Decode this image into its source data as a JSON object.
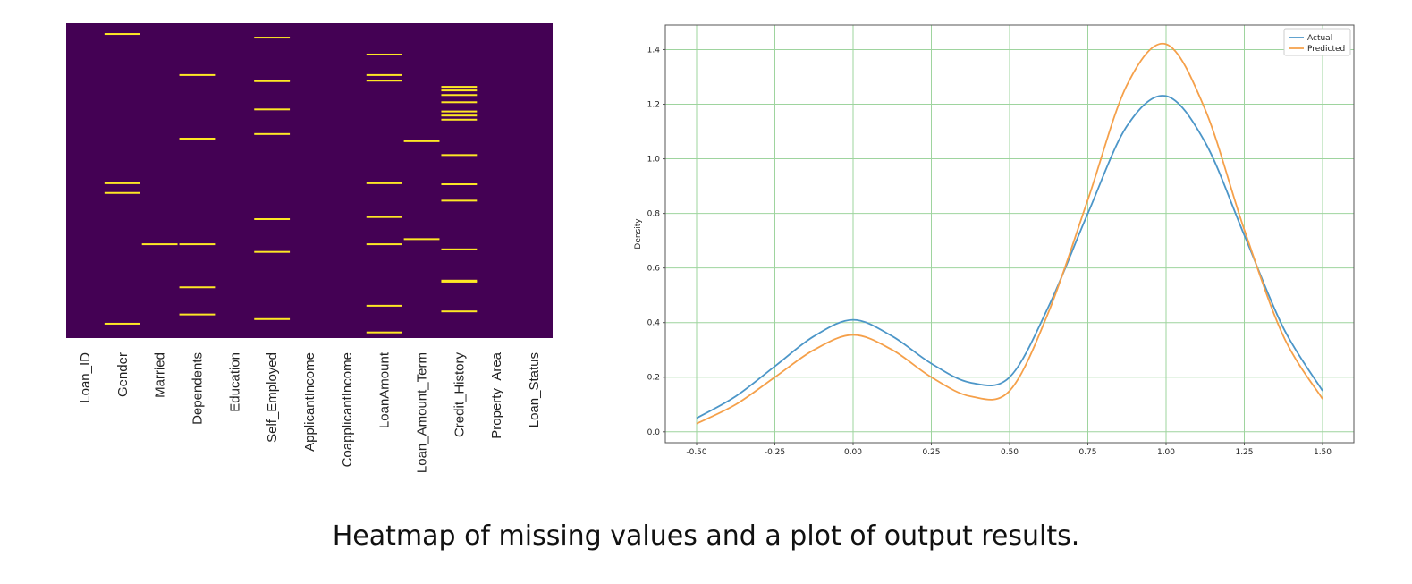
{
  "caption": "Heatmap of missing values and a plot of output results.",
  "colors": {
    "heatmap_background": "#440154",
    "heatmap_missing": "#fde725",
    "actual": "#4c96c8",
    "predicted": "#f5a04a",
    "grid": "#9ed49e",
    "axis": "#555555"
  },
  "chart_data": [
    {
      "type": "heatmap",
      "columns": [
        "Loan_ID",
        "Gender",
        "Married",
        "Dependents",
        "Education",
        "Self_Employed",
        "ApplicantIncome",
        "CoapplicantIncome",
        "LoanAmount",
        "Loan_Amount_Term",
        "Credit_History",
        "Property_Area",
        "Loan_Status"
      ],
      "row_count": 614,
      "missing_rows": {
        "Loan_ID": [],
        "Gender": [
          21,
          312,
          331,
          586
        ],
        "Married": [
          431
        ],
        "Dependents": [
          101,
          225,
          431,
          515,
          568
        ],
        "Education": [],
        "Self_Employed": [
          28,
          112,
          113,
          168,
          216,
          382,
          446,
          577
        ],
        "ApplicantIncome": [],
        "CoapplicantIncome": [],
        "LoanAmount": [
          61,
          101,
          112,
          312,
          378,
          431,
          551,
          603
        ],
        "Loan_Amount_Term": [
          230,
          421
        ],
        "Credit_History": [
          124,
          131,
          140,
          154,
          172,
          180,
          188,
          257,
          314,
          346,
          441,
          502,
          504,
          562
        ],
        "Property_Area": [],
        "Loan_Status": []
      }
    },
    {
      "type": "line",
      "xlabel": "",
      "ylabel": "Density",
      "xlim": [
        -0.6,
        1.6
      ],
      "ylim": [
        -0.04,
        1.49
      ],
      "xticks": [
        "-0.50",
        "-0.25",
        "0.00",
        "0.25",
        "0.50",
        "0.75",
        "1.00",
        "1.25",
        "1.50"
      ],
      "yticks": [
        "0.0",
        "0.2",
        "0.4",
        "0.6",
        "0.8",
        "1.0",
        "1.2",
        "1.4"
      ],
      "grid": true,
      "legend_position": "top-right",
      "series": [
        {
          "name": "Actual",
          "x": [
            -0.5,
            -0.375,
            -0.25,
            -0.125,
            0.0,
            0.125,
            0.25,
            0.375,
            0.5,
            0.625,
            0.75,
            0.875,
            1.0,
            1.125,
            1.25,
            1.375,
            1.5
          ],
          "y": [
            0.05,
            0.13,
            0.24,
            0.35,
            0.41,
            0.35,
            0.25,
            0.18,
            0.2,
            0.46,
            0.8,
            1.12,
            1.23,
            1.06,
            0.72,
            0.38,
            0.15
          ]
        },
        {
          "name": "Predicted",
          "x": [
            -0.5,
            -0.375,
            -0.25,
            -0.125,
            0.0,
            0.125,
            0.25,
            0.375,
            0.5,
            0.625,
            0.75,
            0.875,
            1.0,
            1.125,
            1.25,
            1.375,
            1.5
          ],
          "y": [
            0.03,
            0.1,
            0.2,
            0.3,
            0.355,
            0.3,
            0.2,
            0.13,
            0.15,
            0.44,
            0.85,
            1.27,
            1.42,
            1.18,
            0.74,
            0.35,
            0.12
          ]
        }
      ]
    }
  ]
}
